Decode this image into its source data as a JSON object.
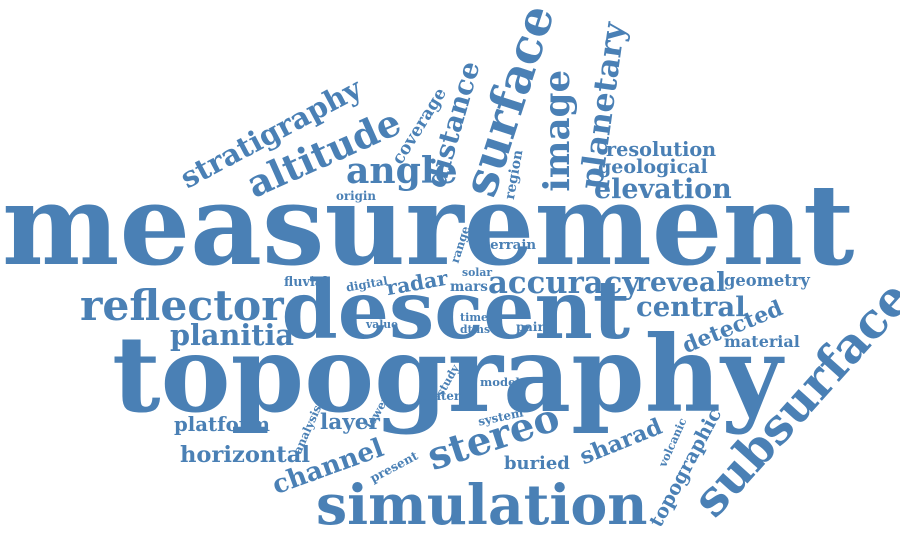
{
  "color": "#4a80b5",
  "words": [
    {
      "text": "measurement"
    },
    {
      "text": "topography"
    },
    {
      "text": "descent"
    },
    {
      "text": "simulation"
    },
    {
      "text": "subsurface"
    },
    {
      "text": "surface"
    },
    {
      "text": "reflector"
    },
    {
      "text": "altitude"
    },
    {
      "text": "stereo"
    },
    {
      "text": "image"
    },
    {
      "text": "planetary"
    },
    {
      "text": "angle"
    },
    {
      "text": "stratigraphy"
    },
    {
      "text": "planitia"
    },
    {
      "text": "channel"
    },
    {
      "text": "accuracy"
    },
    {
      "text": "central"
    },
    {
      "text": "detected"
    },
    {
      "text": "elevation"
    },
    {
      "text": "distance"
    },
    {
      "text": "resolution"
    },
    {
      "text": "geological"
    },
    {
      "text": "reveal"
    },
    {
      "text": "geometry"
    },
    {
      "text": "material"
    },
    {
      "text": "horizontal"
    },
    {
      "text": "platform"
    },
    {
      "text": "layer"
    },
    {
      "text": "sharad"
    },
    {
      "text": "buried"
    },
    {
      "text": "radar"
    },
    {
      "text": "topographic"
    },
    {
      "text": "coverage"
    },
    {
      "text": "region"
    },
    {
      "text": "origin"
    },
    {
      "text": "terrain"
    },
    {
      "text": "range"
    },
    {
      "text": "fluvial"
    },
    {
      "text": "digital"
    },
    {
      "text": "mars"
    },
    {
      "text": "solar"
    },
    {
      "text": "value"
    },
    {
      "text": "time"
    },
    {
      "text": "dtms"
    },
    {
      "text": "pair"
    },
    {
      "text": "study"
    },
    {
      "text": "model"
    },
    {
      "text": "crater"
    },
    {
      "text": "lower"
    },
    {
      "text": "analysis"
    },
    {
      "text": "system"
    },
    {
      "text": "present"
    },
    {
      "text": "volcanic"
    }
  ]
}
